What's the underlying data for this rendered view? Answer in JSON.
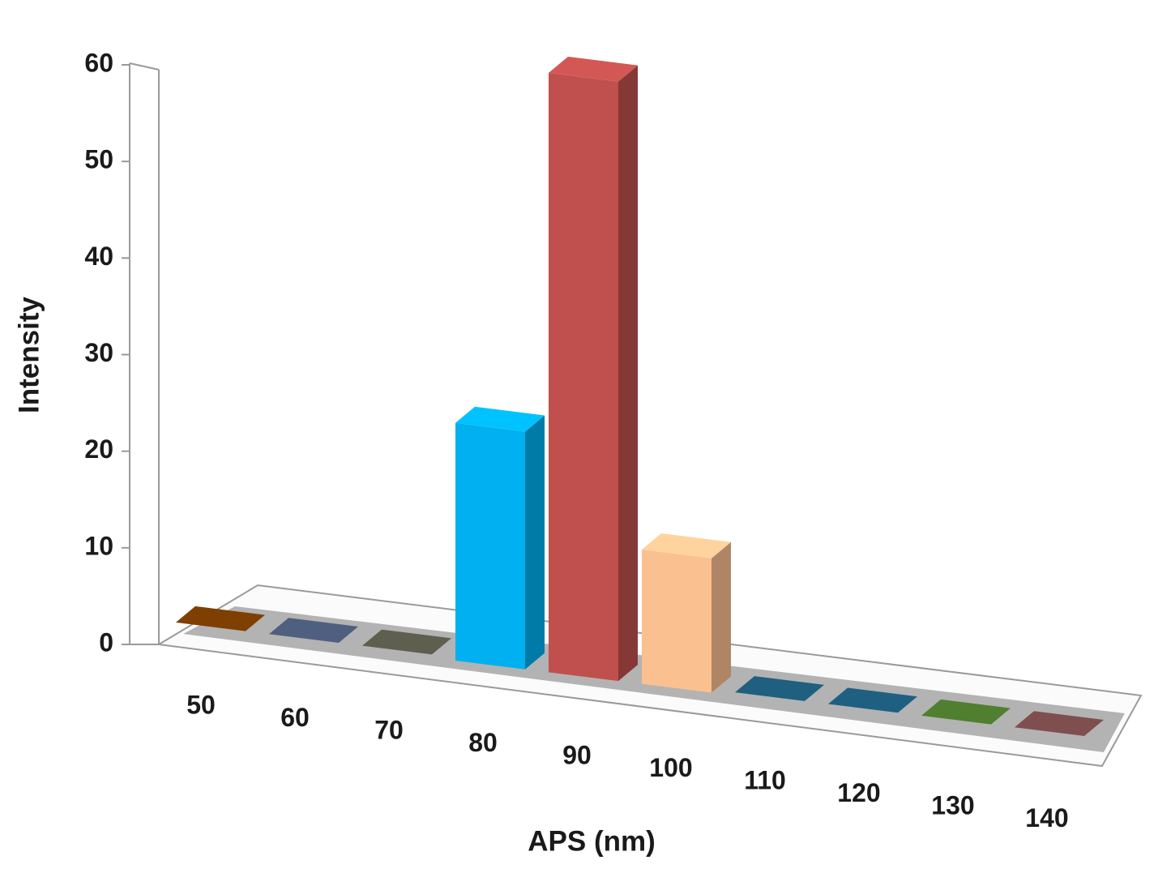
{
  "chart_data": {
    "type": "bar3d",
    "x_label": "APS (nm)",
    "y_label": "Intensity",
    "categories": [
      "50",
      "60",
      "70",
      "80",
      "90",
      "100",
      "110",
      "120",
      "130",
      "140"
    ],
    "values": [
      0,
      0,
      0,
      23,
      58,
      13,
      0,
      0,
      0,
      0
    ],
    "colors": [
      "#7f3f00",
      "#4f5f7f",
      "#5f5f4f",
      "#00b0f0",
      "#c0504d",
      "#fac090",
      "#1f5f7f",
      "#1f5f82",
      "#4f7f2f",
      "#7f4f4f"
    ],
    "ylim": [
      0,
      60
    ],
    "yticks": [
      0,
      10,
      20,
      30,
      40,
      50,
      60
    ]
  }
}
